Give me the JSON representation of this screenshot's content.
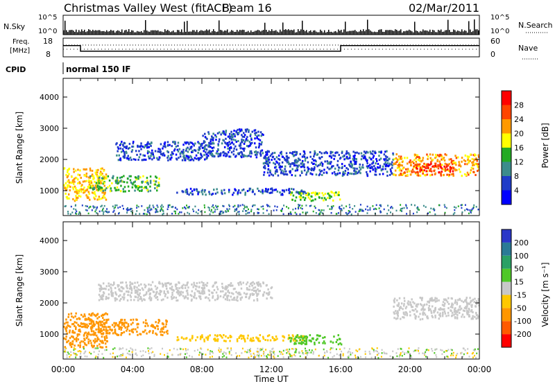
{
  "header": {
    "station": "Christmas Valley West (fitACF)",
    "beam": "Beam 16",
    "date": "02/Mar/2011"
  },
  "strips": {
    "nsky": {
      "label": "N.Sky",
      "ticks": [
        "10^5",
        "10^0"
      ]
    },
    "nsearch": {
      "label": "N.Search",
      "ticks": [
        "10^5",
        "10^0"
      ]
    },
    "freq": {
      "label_line1": "Freq.",
      "label_line2": "[MHz]",
      "ticks": [
        "18",
        "8"
      ]
    },
    "nave": {
      "label": "Nave",
      "ticks": [
        "60",
        "0"
      ]
    },
    "cpid": {
      "label": "CPID",
      "value": "normal 150 IF"
    }
  },
  "panels": {
    "power": {
      "ylabel": "Slant Range [km]",
      "cbar_label": "Power [dB]"
    },
    "velocity": {
      "ylabel": "Slant Range [km]",
      "cbar_label": "Velocity [m s⁻¹]"
    }
  },
  "xaxis": {
    "label": "Time UT"
  },
  "chart_data": [
    {
      "type": "line",
      "title": "Freq. [MHz]",
      "x": [
        "00:00",
        "01:00",
        "01:00",
        "16:00",
        "16:00",
        "24:00"
      ],
      "values": [
        14,
        14,
        11,
        11,
        14,
        14
      ],
      "ylim": [
        8,
        18
      ]
    },
    {
      "type": "heatmap",
      "ylabel": "Slant Range [km]",
      "xlabel": "Time UT",
      "x_ticks": [
        "00:00",
        "04:00",
        "08:00",
        "12:00",
        "16:00",
        "20:00",
        "00:00"
      ],
      "xlim": [
        0,
        24
      ],
      "y_ticks": [
        1000,
        2000,
        3000,
        4000
      ],
      "ylim": [
        200,
        4600
      ],
      "colorbar": {
        "label": "Power [dB]",
        "ticks": [
          4,
          8,
          12,
          16,
          20,
          24,
          28
        ],
        "colors": [
          "#0000ff",
          "#1f3cc8",
          "#3c8c8c",
          "#23aa23",
          "#ffff00",
          "#ff9900",
          "#ff4400",
          "#ff0000"
        ]
      },
      "echo_regions": [
        {
          "t0": 0.0,
          "t1": 2.5,
          "r0": 700,
          "r1": 1750,
          "level": 20
        },
        {
          "t0": 1.5,
          "t1": 5.5,
          "r0": 1000,
          "r1": 1500,
          "level": 14
        },
        {
          "t0": 3.0,
          "t1": 8.5,
          "r0": 2000,
          "r1": 2600,
          "level": 6
        },
        {
          "t0": 8.0,
          "t1": 11.5,
          "r0": 2100,
          "r1": 3000,
          "level": 6
        },
        {
          "t0": 6.5,
          "t1": 14.0,
          "r0": 900,
          "r1": 1100,
          "level": 6
        },
        {
          "t0": 13.0,
          "t1": 16.0,
          "r0": 700,
          "r1": 1000,
          "level": 16
        },
        {
          "t0": 11.5,
          "t1": 19.0,
          "r0": 1500,
          "r1": 2300,
          "level": 6
        },
        {
          "t0": 19.0,
          "t1": 24.0,
          "r0": 1500,
          "r1": 2200,
          "level": 22
        },
        {
          "t0": 20.0,
          "t1": 22.5,
          "r0": 1600,
          "r1": 1900,
          "level": 28
        }
      ]
    },
    {
      "type": "heatmap",
      "ylabel": "Slant Range [km]",
      "xlabel": "Time UT",
      "x_ticks": [
        "00:00",
        "04:00",
        "08:00",
        "12:00",
        "16:00",
        "20:00",
        "00:00"
      ],
      "xlim": [
        0,
        24
      ],
      "y_ticks": [
        1000,
        2000,
        3000,
        4000
      ],
      "ylim": [
        200,
        4600
      ],
      "colorbar": {
        "label": "Velocity [m s⁻¹]",
        "ticks": [
          200,
          100,
          50,
          15,
          -15,
          -50,
          -100,
          -200
        ],
        "colors": [
          "#2a36c8",
          "#2a7a96",
          "#2aa064",
          "#50c828",
          "#c8c8c8",
          "#ffc800",
          "#ff9600",
          "#ff5a00",
          "#ff0000"
        ]
      },
      "echo_regions": [
        {
          "t0": 0.0,
          "t1": 2.5,
          "r0": 600,
          "r1": 1700,
          "level": -60
        },
        {
          "t0": 1.5,
          "t1": 6.0,
          "r0": 1000,
          "r1": 1500,
          "level": -80
        },
        {
          "t0": 2.0,
          "t1": 12.0,
          "r0": 2100,
          "r1": 2700,
          "level": 0
        },
        {
          "t0": 6.5,
          "t1": 14.0,
          "r0": 800,
          "r1": 1000,
          "level": -30
        },
        {
          "t0": 13.0,
          "t1": 16.0,
          "r0": 700,
          "r1": 1000,
          "level": 40
        },
        {
          "t0": 19.0,
          "t1": 24.0,
          "r0": 1500,
          "r1": 2200,
          "level": 0
        }
      ]
    }
  ]
}
